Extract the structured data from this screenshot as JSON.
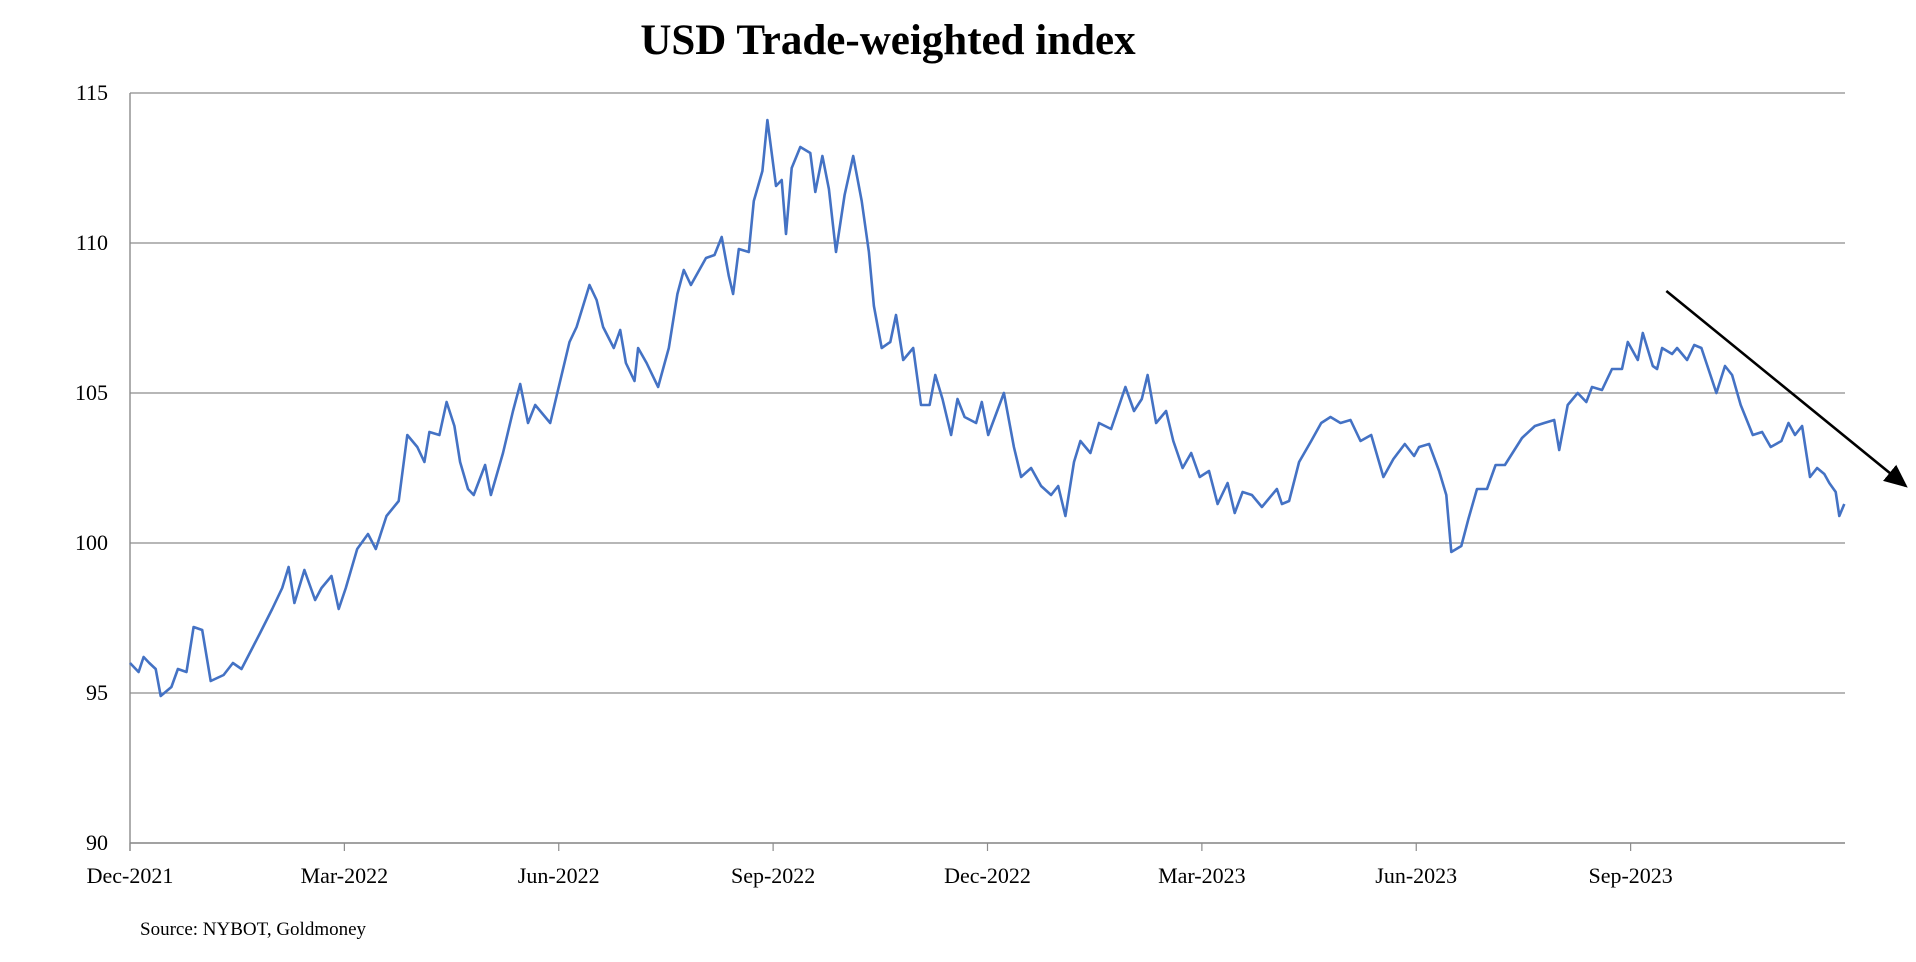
{
  "chart_data": {
    "type": "line",
    "title": "USD Trade-weighted index",
    "xlabel": "",
    "ylabel": "",
    "source": "Source: NYBOT, Goldmoney",
    "x_unit": "months since Dec-2021",
    "xlim": [
      0,
      24
    ],
    "ylim": [
      90,
      115
    ],
    "yticks": [
      90,
      95,
      100,
      105,
      110,
      115
    ],
    "xticks": [
      {
        "m": 0,
        "label": "Dec-2021"
      },
      {
        "m": 3,
        "label": "Mar-2022"
      },
      {
        "m": 6,
        "label": "Jun-2022"
      },
      {
        "m": 9,
        "label": "Sep-2022"
      },
      {
        "m": 12,
        "label": "Dec-2022"
      },
      {
        "m": 15,
        "label": "Mar-2023"
      },
      {
        "m": 18,
        "label": "Jun-2023"
      },
      {
        "m": 21,
        "label": "Sep-2023"
      }
    ],
    "grid": true,
    "line_color": "#4472C4",
    "series": [
      {
        "name": "USD Trade-weighted index",
        "x": [
          0,
          0.12,
          0.19,
          0.27,
          0.36,
          0.43,
          0.58,
          0.67,
          0.79,
          0.89,
          1.01,
          1.13,
          1.31,
          1.44,
          1.56,
          1.82,
          1.99,
          2.13,
          2.22,
          2.3,
          2.44,
          2.59,
          2.68,
          2.82,
          2.92,
          3.02,
          3.18,
          3.33,
          3.44,
          3.59,
          3.76,
          3.88,
          4.02,
          4.12,
          4.19,
          4.33,
          4.43,
          4.54,
          4.62,
          4.73,
          4.81,
          4.97,
          5.05,
          5.22,
          5.36,
          5.46,
          5.57,
          5.67,
          5.88,
          5.98,
          6.15,
          6.25,
          6.43,
          6.53,
          6.62,
          6.77,
          6.86,
          6.94,
          7.06,
          7.11,
          7.23,
          7.39,
          7.54,
          7.66,
          7.75,
          7.85,
          8.06,
          8.18,
          8.28,
          8.38,
          8.44,
          8.52,
          8.66,
          8.73,
          8.85,
          8.92,
          9.04,
          9.12,
          9.18,
          9.26,
          9.38,
          9.52,
          9.59,
          9.69,
          9.78,
          9.88,
          10.0,
          10.12,
          10.24,
          10.34,
          10.41,
          10.52,
          10.64,
          10.72,
          10.82,
          10.96,
          11.07,
          11.19,
          11.27,
          11.37,
          11.49,
          11.58,
          11.68,
          11.84,
          11.92,
          12.01,
          12.23,
          12.37,
          12.47,
          12.61,
          12.75,
          12.89,
          12.99,
          13.09,
          13.21,
          13.3,
          13.44,
          13.56,
          13.73,
          13.93,
          14.05,
          14.16,
          14.24,
          14.36,
          14.5,
          14.6,
          14.73,
          14.85,
          14.97,
          15.1,
          15.22,
          15.36,
          15.46,
          15.57,
          15.7,
          15.84,
          16.05,
          16.12,
          16.22,
          16.36,
          16.53,
          16.67,
          16.8,
          16.94,
          17.08,
          17.22,
          17.37,
          17.54,
          17.68,
          17.84,
          17.97,
          18.04,
          18.18,
          18.32,
          18.42,
          18.49,
          18.63,
          18.73,
          18.85,
          18.99,
          19.11,
          19.24,
          19.48,
          19.66,
          19.79,
          19.93,
          20.0,
          20.12,
          20.26,
          20.38,
          20.46,
          20.6,
          20.74,
          20.88,
          20.96,
          21.1,
          21.17,
          21.31,
          21.37,
          21.44,
          21.58,
          21.65,
          21.79,
          21.89,
          21.99,
          22.06,
          22.2,
          22.32,
          22.42,
          22.54,
          22.71,
          22.84,
          22.96,
          23.11,
          23.21,
          23.3,
          23.4,
          23.51,
          23.61,
          23.71,
          23.78,
          23.87,
          23.92,
          23.99
        ],
        "values": [
          96.0,
          95.7,
          96.2,
          96.0,
          95.8,
          94.9,
          95.2,
          95.8,
          95.7,
          97.2,
          97.1,
          95.4,
          95.6,
          96.0,
          95.8,
          97.0,
          97.8,
          98.5,
          99.2,
          98.0,
          99.1,
          98.1,
          98.5,
          98.9,
          97.8,
          98.5,
          99.8,
          100.3,
          99.8,
          100.9,
          101.4,
          103.6,
          103.2,
          102.7,
          103.7,
          103.6,
          104.7,
          103.9,
          102.7,
          101.8,
          101.6,
          102.6,
          101.6,
          103.0,
          104.4,
          105.3,
          104.0,
          104.6,
          104.0,
          105.0,
          106.7,
          107.2,
          108.6,
          108.1,
          107.2,
          106.5,
          107.1,
          106.0,
          105.4,
          106.5,
          106.0,
          105.2,
          106.5,
          108.3,
          109.1,
          108.6,
          109.5,
          109.6,
          110.2,
          108.9,
          108.3,
          109.8,
          109.7,
          111.4,
          112.4,
          114.1,
          111.9,
          112.1,
          110.3,
          112.5,
          113.2,
          113.0,
          111.7,
          112.9,
          111.8,
          109.7,
          111.6,
          112.9,
          111.4,
          109.7,
          107.9,
          106.5,
          106.7,
          107.6,
          106.1,
          106.5,
          104.6,
          104.6,
          105.6,
          104.8,
          103.6,
          104.8,
          104.2,
          104.0,
          104.7,
          103.6,
          105.0,
          103.2,
          102.2,
          102.5,
          101.9,
          101.6,
          101.9,
          100.9,
          102.7,
          103.4,
          103.0,
          104.0,
          103.8,
          105.2,
          104.4,
          104.8,
          105.6,
          104.0,
          104.4,
          103.4,
          102.5,
          103.0,
          102.2,
          102.4,
          101.3,
          102.0,
          101.0,
          101.7,
          101.6,
          101.2,
          101.8,
          101.3,
          101.4,
          102.7,
          103.4,
          104.0,
          104.2,
          104.0,
          104.1,
          103.4,
          103.6,
          102.2,
          102.8,
          103.3,
          102.9,
          103.2,
          103.3,
          102.4,
          101.6,
          99.7,
          99.9,
          100.8,
          101.8,
          101.8,
          102.6,
          102.6,
          103.5,
          103.9,
          104.0,
          104.1,
          103.1,
          104.6,
          105.0,
          104.7,
          105.2,
          105.1,
          105.8,
          105.8,
          106.7,
          106.1,
          107.0,
          105.9,
          105.8,
          106.5,
          106.3,
          106.5,
          106.1,
          106.6,
          106.5,
          106.0,
          105.0,
          105.9,
          105.6,
          104.6,
          103.6,
          103.7,
          103.2,
          103.4,
          104.0,
          103.6,
          103.9,
          102.2,
          102.5,
          102.3,
          102.0,
          101.7,
          100.9,
          101.3
        ]
      }
    ],
    "annotations": [
      {
        "type": "arrow",
        "color": "#000000",
        "from": [
          21.5,
          108.4
        ],
        "to": [
          24.85,
          101.9
        ],
        "meaning": "downtrend"
      }
    ]
  }
}
